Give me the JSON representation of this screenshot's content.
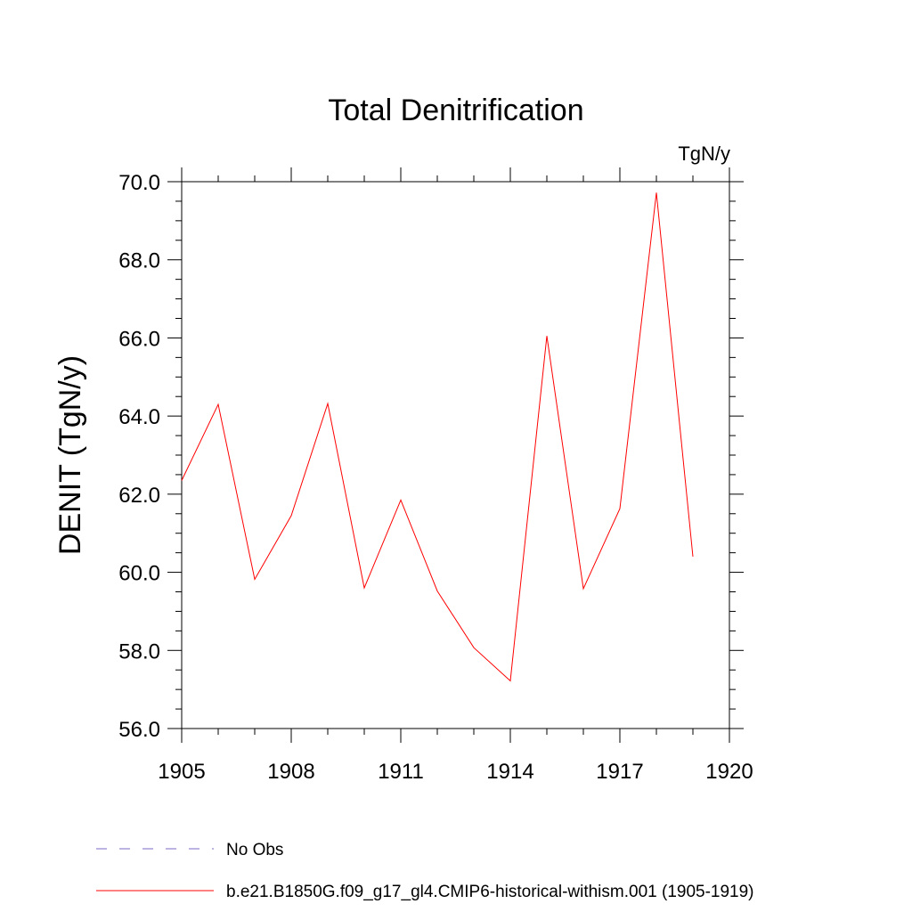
{
  "chart_data": {
    "type": "line",
    "title": "Total Denitrification",
    "units_label": "TgN/y",
    "ylabel": "DENIT  (TgN/y)",
    "xlabel": "",
    "xlim": [
      1905,
      1920
    ],
    "ylim": [
      56.0,
      70.0
    ],
    "x_ticks": [
      1905,
      1908,
      1911,
      1914,
      1917,
      1920
    ],
    "x_tick_labels": [
      "1905",
      "1908",
      "1911",
      "1914",
      "1917",
      "1920"
    ],
    "y_ticks": [
      56.0,
      58.0,
      60.0,
      62.0,
      64.0,
      66.0,
      68.0,
      70.0
    ],
    "y_tick_labels": [
      "56.0",
      "58.0",
      "60.0",
      "62.0",
      "64.0",
      "66.0",
      "68.0",
      "70.0"
    ],
    "grid": false,
    "legend_position": "bottom",
    "series": [
      {
        "name": "No Obs",
        "color": "#7b68c8",
        "dash": "dashed",
        "x": [],
        "y": []
      },
      {
        "name": "b.e21.B1850G.f09_g17_gl4.CMIP6-historical-withism.001 (1905-1919)",
        "color": "#ff0000",
        "dash": "solid",
        "x": [
          1905,
          1906,
          1907,
          1908,
          1909,
          1910,
          1911,
          1912,
          1913,
          1914,
          1915,
          1916,
          1917,
          1918,
          1919
        ],
        "y": [
          62.35,
          64.3,
          59.82,
          61.45,
          64.32,
          59.6,
          61.85,
          59.52,
          58.07,
          57.22,
          66.05,
          59.58,
          61.63,
          69.72,
          60.4
        ]
      }
    ]
  }
}
